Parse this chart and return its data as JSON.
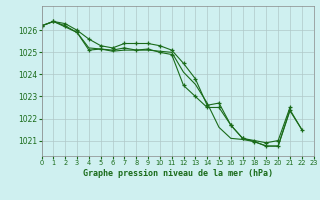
{
  "title": "Graphe pression niveau de la mer (hPa)",
  "background_color": "#cff0f0",
  "grid_color": "#b0c8c8",
  "line_color": "#1a6b1a",
  "xlim": [
    0,
    23
  ],
  "ylim": [
    1020.3,
    1027.1
  ],
  "xticks": [
    0,
    1,
    2,
    3,
    4,
    5,
    6,
    7,
    8,
    9,
    10,
    11,
    12,
    13,
    14,
    15,
    16,
    17,
    18,
    19,
    20,
    21,
    22,
    23
  ],
  "yticks": [
    1021,
    1022,
    1023,
    1024,
    1025,
    1026
  ],
  "series": [
    {
      "x": [
        0,
        1,
        2,
        3,
        4,
        5,
        6,
        7,
        8,
        9,
        10,
        11,
        12,
        13,
        14,
        15,
        16,
        17,
        18,
        19,
        20,
        21
      ],
      "y": [
        1026.2,
        1026.4,
        1026.3,
        1026.0,
        1025.6,
        1025.3,
        1025.2,
        1025.4,
        1025.4,
        1025.4,
        1025.3,
        1025.1,
        1024.5,
        1023.8,
        1022.6,
        1022.7,
        1021.7,
        1021.1,
        1021.0,
        1020.9,
        1021.0,
        1022.5
      ],
      "has_markers": true
    },
    {
      "x": [
        0,
        1,
        2,
        3,
        4,
        5,
        6,
        7,
        8,
        9,
        10,
        11,
        12,
        13,
        14,
        15,
        16,
        17,
        18,
        19,
        20,
        21,
        22
      ],
      "y": [
        1026.2,
        1026.4,
        1026.2,
        1025.9,
        1025.1,
        1025.15,
        1025.1,
        1025.2,
        1025.1,
        1025.15,
        1025.0,
        1024.9,
        1023.5,
        1023.0,
        1022.5,
        1022.5,
        1021.7,
        1021.1,
        1020.95,
        1020.75,
        1020.75,
        1022.4,
        1021.5
      ],
      "has_markers": true
    },
    {
      "x": [
        0,
        1,
        2,
        3,
        4,
        5,
        6,
        7,
        8,
        9,
        10,
        11,
        12,
        13,
        14,
        15,
        16,
        17,
        18,
        19,
        20,
        21,
        22
      ],
      "y": [
        1026.2,
        1026.4,
        1026.15,
        1025.9,
        1025.2,
        1025.15,
        1025.05,
        1025.1,
        1025.1,
        1025.1,
        1025.05,
        1025.0,
        1024.1,
        1023.55,
        1022.7,
        1021.6,
        1021.1,
        1021.05,
        1020.95,
        1020.75,
        1020.75,
        1022.35,
        1021.5
      ],
      "has_markers": false
    }
  ]
}
